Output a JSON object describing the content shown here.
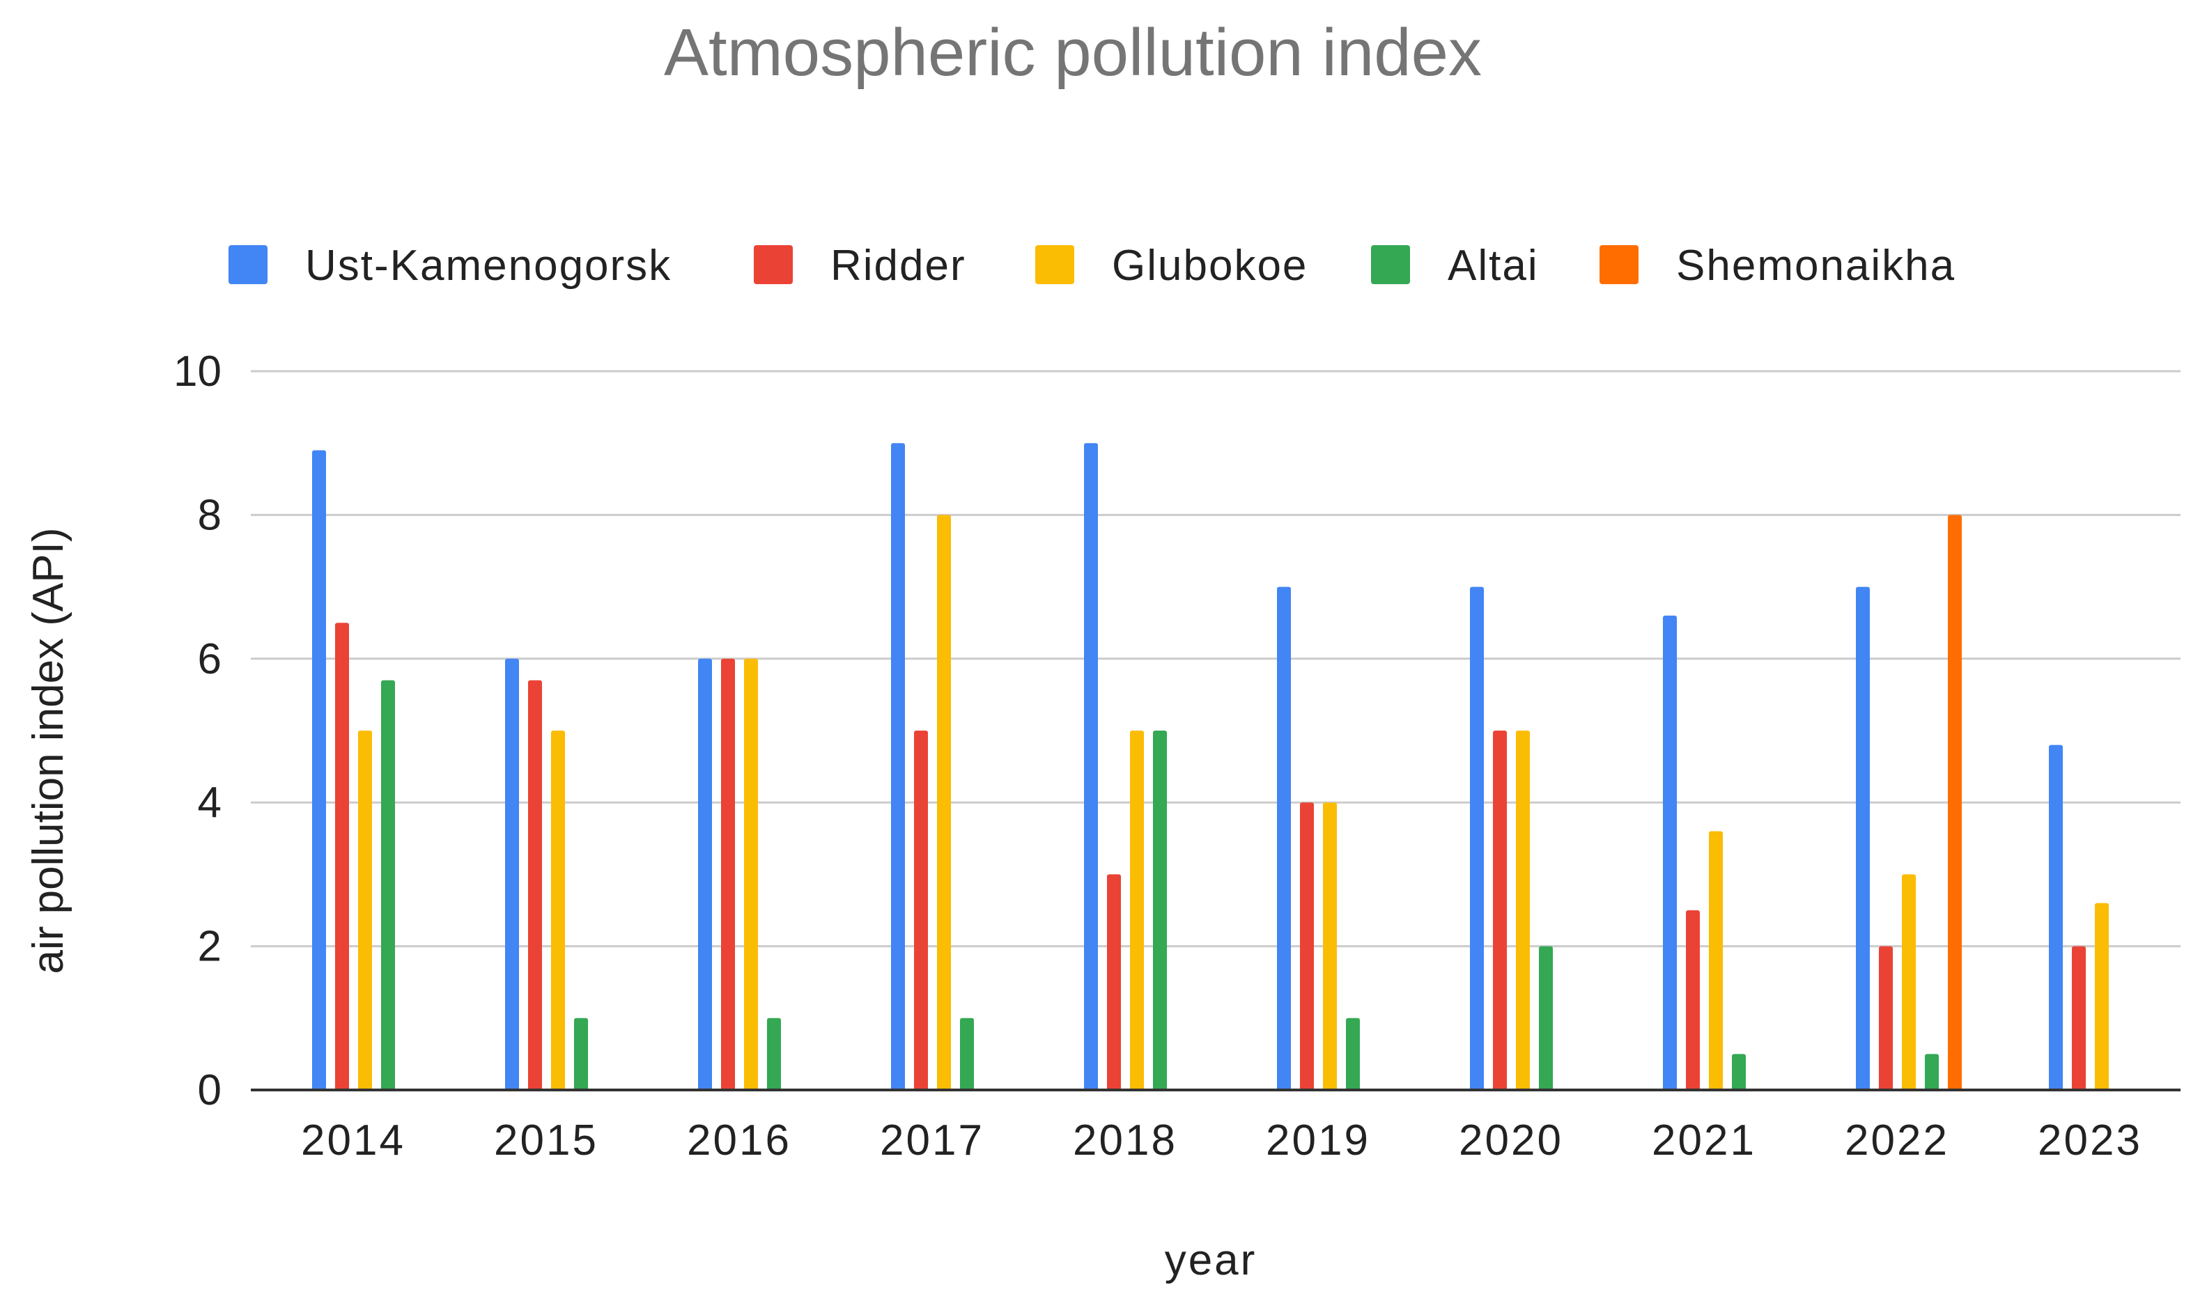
{
  "chart_data": {
    "type": "bar",
    "title": "Atmospheric pollution index",
    "xlabel": "year",
    "ylabel": "air pollution index (API)",
    "ylim": [
      0,
      10
    ],
    "yticks": [
      0,
      2,
      4,
      6,
      8,
      10
    ],
    "grid": true,
    "legend_position": "top",
    "categories": [
      "2014",
      "2015",
      "2016",
      "2017",
      "2018",
      "2019",
      "2020",
      "2021",
      "2022",
      "2023"
    ],
    "series": [
      {
        "name": "Ust-Kamenogorsk",
        "color": "#4285f4",
        "values": [
          8.9,
          6,
          6,
          9,
          9,
          7,
          7,
          6.6,
          7,
          4.8
        ]
      },
      {
        "name": "Ridder",
        "color": "#ea4335",
        "values": [
          6.5,
          5.7,
          6,
          5,
          3,
          4,
          5,
          2.5,
          2,
          2
        ]
      },
      {
        "name": "Glubokoe",
        "color": "#fbbc04",
        "values": [
          5,
          5,
          6,
          8,
          5,
          4,
          5,
          3.6,
          3,
          2.6
        ]
      },
      {
        "name": "Altai",
        "color": "#34a853",
        "values": [
          5.7,
          1,
          1,
          1,
          5,
          1,
          2,
          0.5,
          0.5,
          null
        ]
      },
      {
        "name": "Shemonaikha",
        "color": "#ff6d01",
        "values": [
          null,
          null,
          null,
          null,
          null,
          null,
          null,
          null,
          8,
          null
        ]
      }
    ]
  }
}
